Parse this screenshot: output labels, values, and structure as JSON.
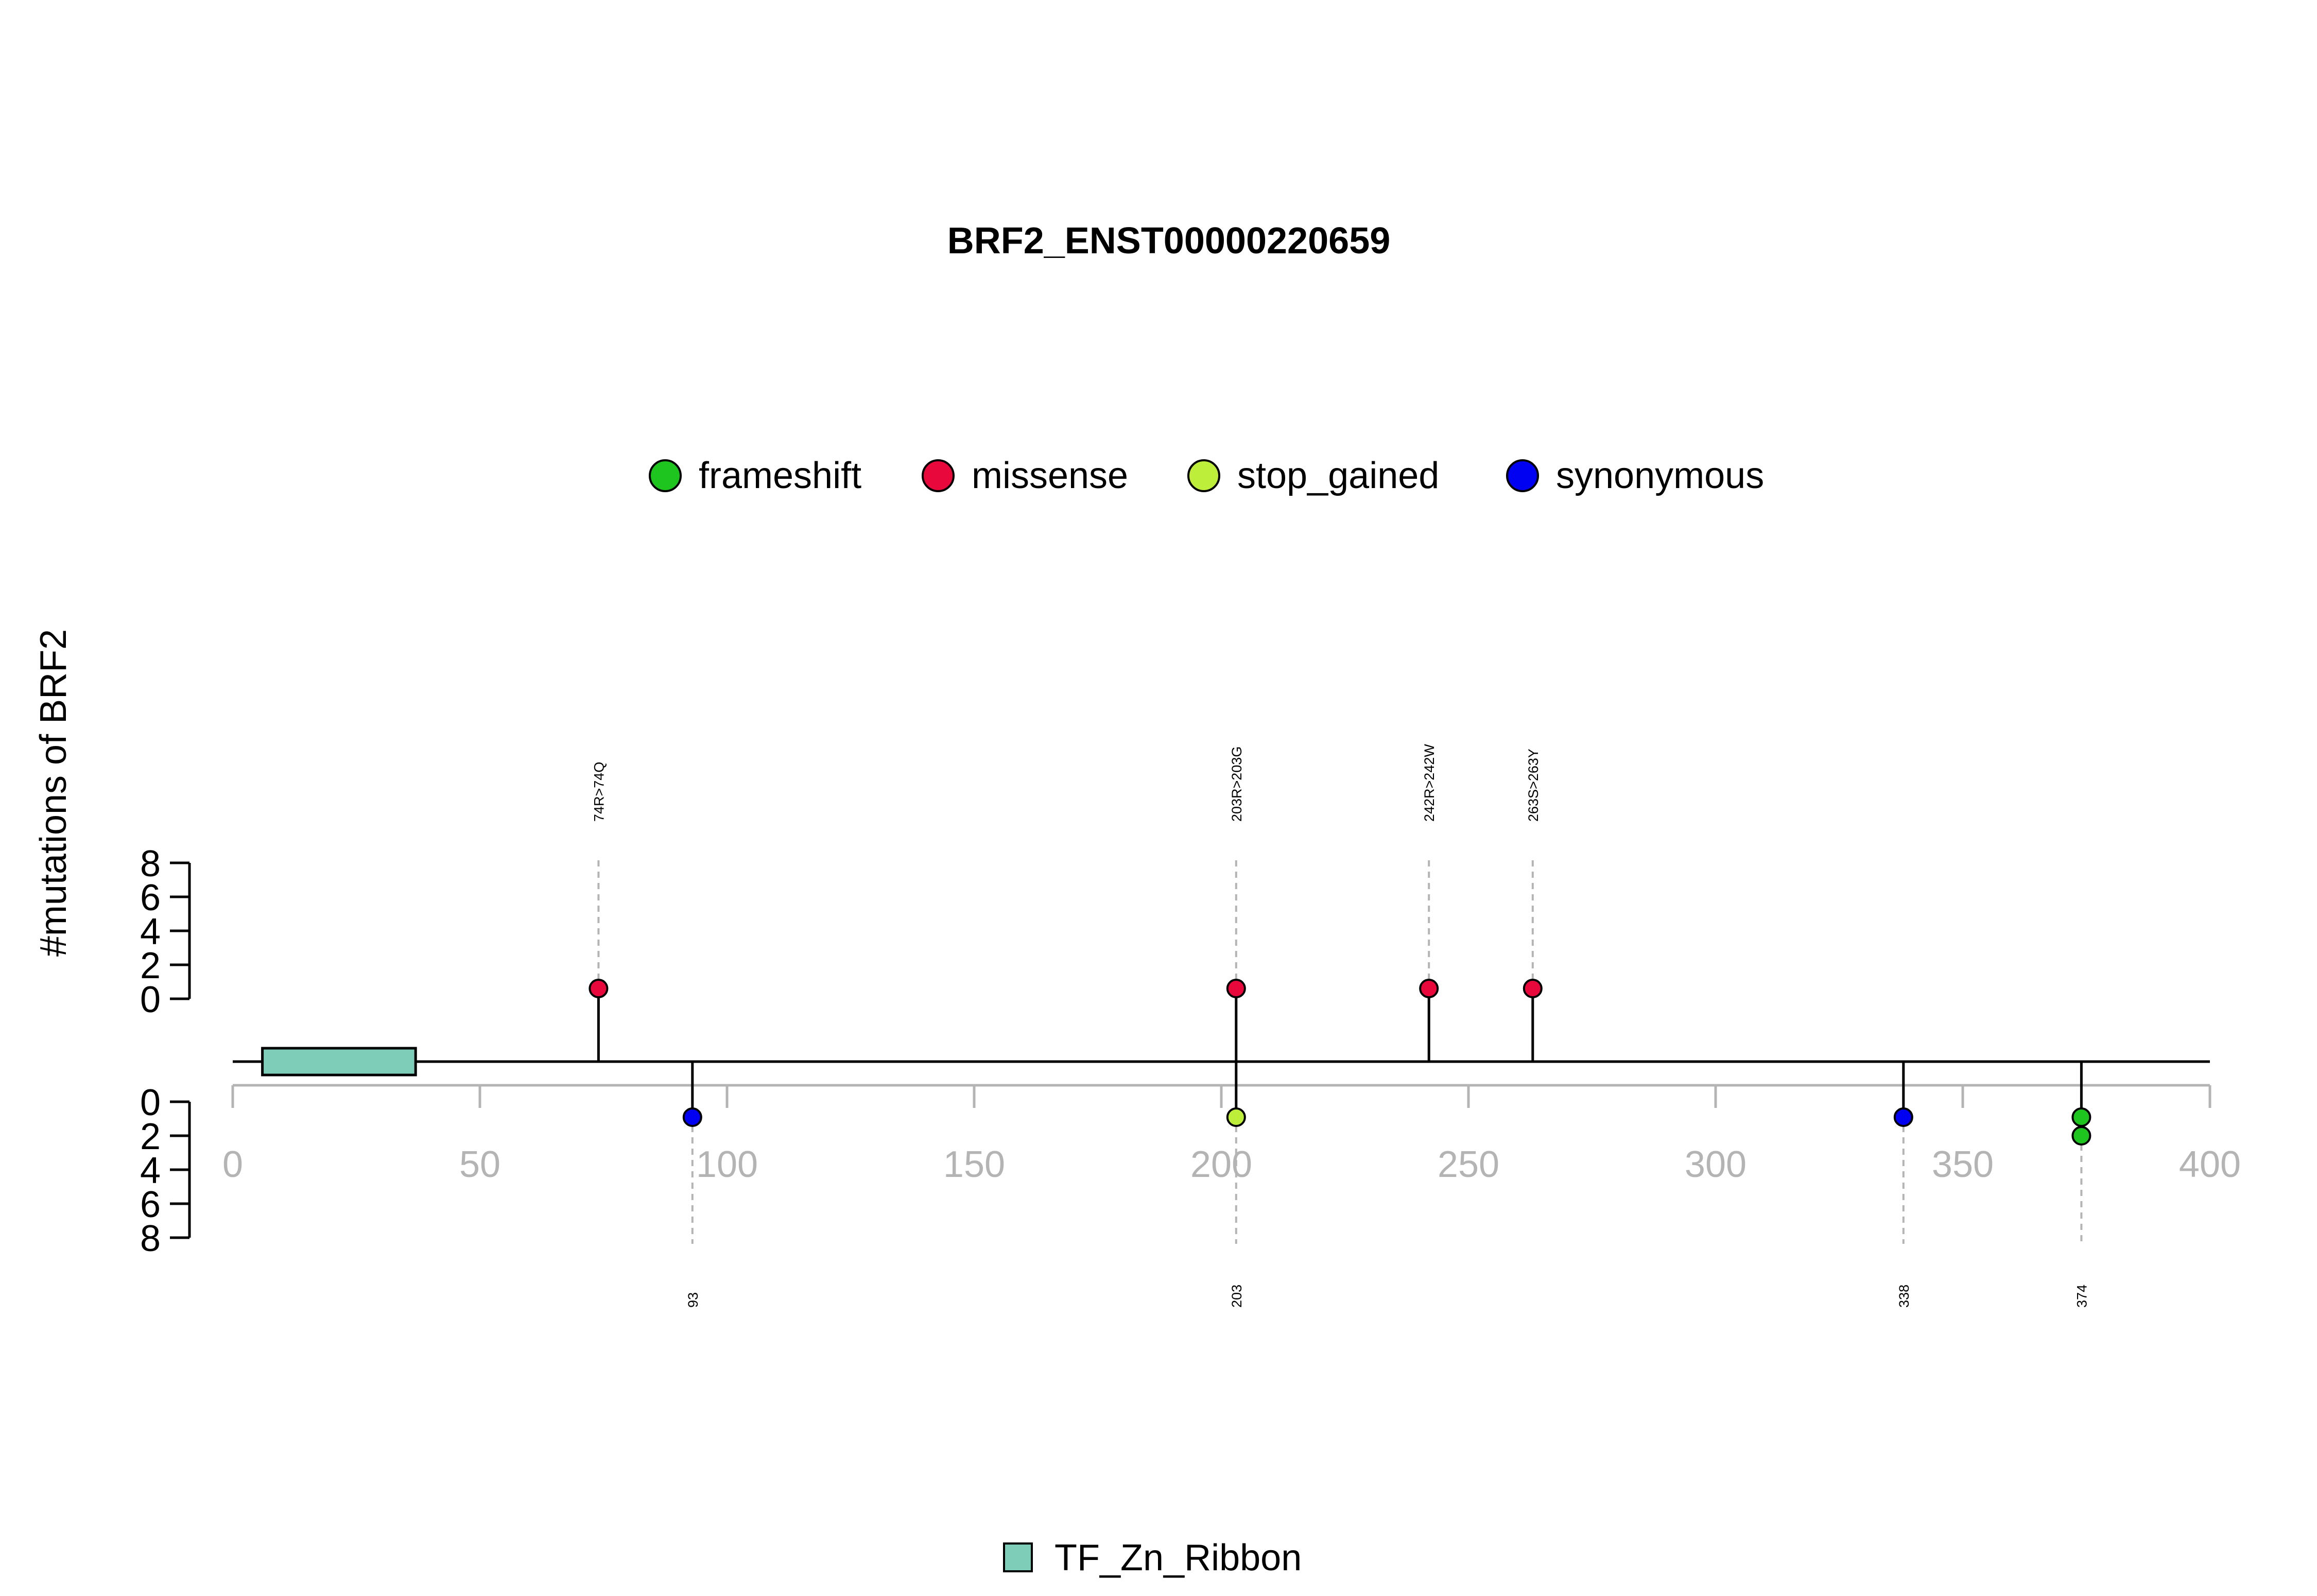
{
  "chart_data": {
    "type": "lollipop",
    "title": "BRF2_ENST00000220659",
    "ylabel": "#mutations of BRF2",
    "x_axis": {
      "range": [
        0,
        400
      ],
      "ticks": [
        "0",
        "50",
        "100",
        "150",
        "200",
        "250",
        "300",
        "350",
        "400"
      ]
    },
    "y_axis": {
      "range": [
        0,
        8
      ],
      "ticks": [
        "0",
        "2",
        "4",
        "6",
        "8"
      ]
    },
    "legend": {
      "position": "top",
      "entries": [
        {
          "name": "frameshift",
          "color": "#1ec51e"
        },
        {
          "name": "missense",
          "color": "#e8083c"
        },
        {
          "name": "stop_gained",
          "color": "#bcee3a"
        },
        {
          "name": "synonymous",
          "color": "#0000f2"
        }
      ]
    },
    "domains": [
      {
        "name": "TF_Zn_Ribbon",
        "start": 6,
        "end": 37,
        "color": "#7dcdb8"
      }
    ],
    "upper_mutations": [
      {
        "position": 74,
        "label": "74R>74Q",
        "type": "missense",
        "count": 1
      },
      {
        "position": 203,
        "label": "203R>203G",
        "type": "missense",
        "count": 1
      },
      {
        "position": 242,
        "label": "242R>242W",
        "type": "missense",
        "count": 1
      },
      {
        "position": 263,
        "label": "263S>263Y",
        "type": "missense",
        "count": 1
      }
    ],
    "lower_mutations": [
      {
        "position": 93,
        "label": "93",
        "types": [
          "synonymous"
        ],
        "count": 1
      },
      {
        "position": 203,
        "label": "203",
        "types": [
          "stop_gained"
        ],
        "count": 1
      },
      {
        "position": 338,
        "label": "338",
        "types": [
          "synonymous"
        ],
        "count": 1
      },
      {
        "position": 374,
        "label": "374",
        "types": [
          "frameshift",
          "frameshift"
        ],
        "count": 2
      }
    ]
  }
}
